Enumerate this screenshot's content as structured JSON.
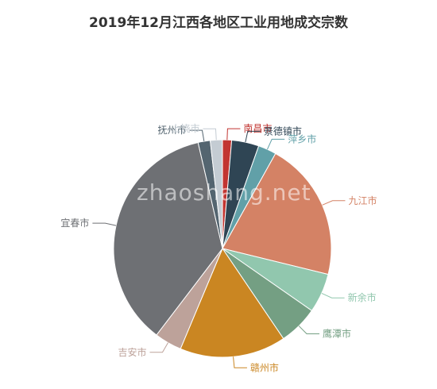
{
  "chart_data": {
    "type": "pie",
    "title": "2019年12月江西各地区工业用地成交宗数",
    "slices": [
      {
        "label": "南昌市",
        "value": 3,
        "color": "#c23531"
      },
      {
        "label": "景德镇市",
        "value": 9,
        "color": "#2f4554"
      },
      {
        "label": "萍乡市",
        "value": 6,
        "color": "#61a0a8"
      },
      {
        "label": "九江市",
        "value": 46,
        "color": "#d48265"
      },
      {
        "label": "新余市",
        "value": 13,
        "color": "#91c7ae"
      },
      {
        "label": "鹰潭市",
        "value": 13,
        "color": "#749f83"
      },
      {
        "label": "赣州市",
        "value": 35,
        "color": "#ca8622"
      },
      {
        "label": "吉安市",
        "value": 9,
        "color": "#bda29a"
      },
      {
        "label": "宜春市",
        "value": 80,
        "color": "#6e7074"
      },
      {
        "label": "抚州市",
        "value": 4,
        "color": "#546570"
      },
      {
        "label": "上饶市",
        "value": 4,
        "color": "#c4ccd3"
      }
    ],
    "start_angle_deg": 90,
    "direction": "clockwise"
  },
  "watermark": "zhaoshang.net"
}
